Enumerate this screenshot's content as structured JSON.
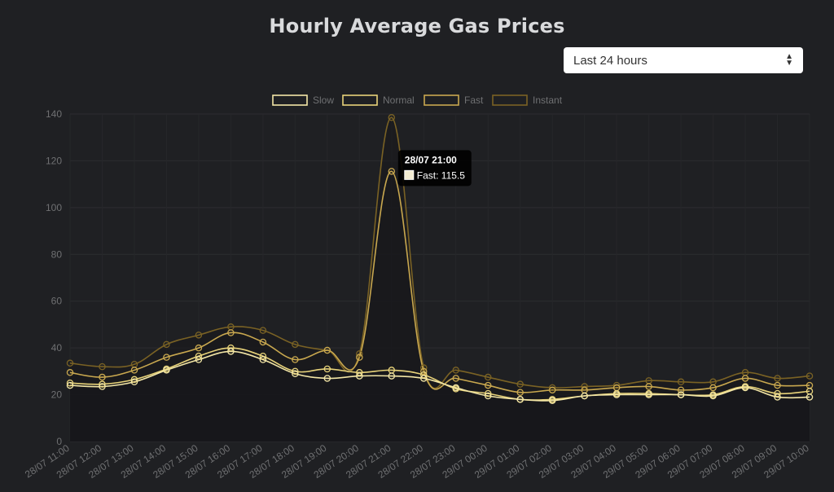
{
  "header": {
    "title": "Hourly Average Gas Prices"
  },
  "range_select": {
    "selected": "Last 24 hours"
  },
  "chart_data": {
    "type": "line",
    "title": "Hourly Average Gas Prices",
    "xlabel": "",
    "ylabel": "",
    "ylim": [
      0,
      140
    ],
    "y_ticks": [
      0,
      20,
      40,
      60,
      80,
      100,
      120,
      140
    ],
    "legend_position": "top-center",
    "grid": true,
    "categories": [
      "28/07 11:00",
      "28/07 12:00",
      "28/07 13:00",
      "28/07 14:00",
      "28/07 15:00",
      "28/07 16:00",
      "28/07 17:00",
      "28/07 18:00",
      "28/07 19:00",
      "28/07 20:00",
      "28/07 21:00",
      "28/07 22:00",
      "28/07 23:00",
      "29/07 00:00",
      "29/07 01:00",
      "29/07 02:00",
      "29/07 03:00",
      "29/07 04:00",
      "29/07 05:00",
      "29/07 06:00",
      "29/07 07:00",
      "29/07 08:00",
      "29/07 09:00",
      "29/07 10:00"
    ],
    "series": [
      {
        "name": "Slow",
        "color": "#f3e6a6",
        "values": [
          24,
          23.5,
          25.5,
          30.5,
          35,
          38.5,
          35,
          29,
          27,
          28,
          28,
          27,
          23,
          19.5,
          18,
          17.5,
          19.5,
          20,
          20,
          20,
          19.5,
          23,
          19,
          19
        ]
      },
      {
        "name": "Normal",
        "color": "#e8d37a",
        "values": [
          25,
          24.5,
          26.5,
          31,
          36.5,
          40,
          36.5,
          30,
          31,
          29.5,
          30.5,
          28.5,
          22.5,
          20.5,
          18,
          18,
          19.5,
          20.5,
          20.5,
          20,
          20,
          23.5,
          20.5,
          21.5
        ]
      },
      {
        "name": "Fast",
        "color": "#c9a84f",
        "values": [
          29.5,
          27.5,
          30.5,
          36,
          40,
          46.5,
          42.5,
          35,
          39,
          36,
          115.5,
          30,
          27,
          24,
          21,
          22,
          22,
          23,
          23.5,
          22,
          23,
          27,
          24,
          24
        ]
      },
      {
        "name": "Instant",
        "color": "#7a6224",
        "values": [
          33.5,
          32,
          33,
          41.5,
          45.5,
          49,
          47.5,
          41.5,
          39,
          37.5,
          138.5,
          31.5,
          30.5,
          27.5,
          24.5,
          23,
          23.5,
          24,
          26,
          25.5,
          25.5,
          29.5,
          27,
          28
        ]
      }
    ],
    "tooltip": {
      "title": "28/07 21:00",
      "label": "Fast: 115.5",
      "category_index": 10,
      "series": "Fast"
    }
  }
}
